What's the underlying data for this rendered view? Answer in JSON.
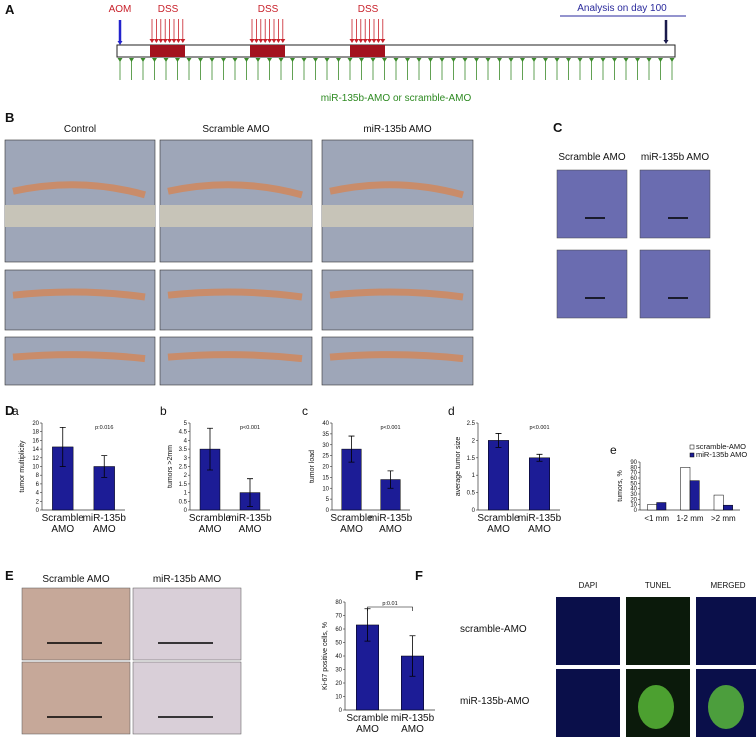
{
  "panel_labels": [
    "A",
    "B",
    "C",
    "D",
    "E",
    "F"
  ],
  "timeline": {
    "start": "AOM",
    "cycles": [
      "DSS",
      "DSS",
      "DSS"
    ],
    "end": "Analysis on day 100",
    "treatment": "miR-135b-AMO or scramble-AMO"
  },
  "photos": {
    "columns": [
      "Control",
      "Scramble AMO",
      "miR-135b AMO"
    ]
  },
  "histology": {
    "columns": [
      "Scramble AMO",
      "miR-135b AMO"
    ]
  },
  "ihc": {
    "columns": [
      "Scramble AMO",
      "miR-135b AMO"
    ]
  },
  "fluorescence": {
    "columns": [
      "DAPI",
      "TUNEL",
      "MERGED"
    ],
    "rows": [
      "scramble-AMO",
      "miR-135b-AMO"
    ]
  },
  "chart_data": [
    {
      "type": "bar",
      "label": "a",
      "ylabel": "tumor multiplicity",
      "categories": [
        "Scramble AMO",
        "miR-135b AMO"
      ],
      "values": [
        14.5,
        10
      ],
      "errors": [
        4.5,
        2.5
      ],
      "color": "#1c1c96",
      "ylim": [
        0,
        20
      ],
      "yticks": [
        0,
        2,
        4,
        6,
        8,
        10,
        12,
        14,
        16,
        18,
        20
      ],
      "annotation": "p:0.016"
    },
    {
      "type": "bar",
      "label": "b",
      "ylabel": "tumors >2mm",
      "categories": [
        "Scramble AMO",
        "miR-135b AMO"
      ],
      "values": [
        3.5,
        1
      ],
      "errors": [
        1.2,
        0.8
      ],
      "color": "#1c1c96",
      "ylim": [
        0,
        5
      ],
      "yticks": [
        0,
        0.5,
        1,
        1.5,
        2,
        2.5,
        3,
        3.5,
        4,
        4.5,
        5
      ],
      "annotation": "p<0.001"
    },
    {
      "type": "bar",
      "label": "c",
      "ylabel": "tumor load",
      "categories": [
        "Scramble AMO",
        "miR-135b AMO"
      ],
      "values": [
        28,
        14
      ],
      "errors": [
        6,
        4
      ],
      "color": "#1c1c96",
      "ylim": [
        0,
        40
      ],
      "yticks": [
        0,
        5,
        10,
        15,
        20,
        25,
        30,
        35,
        40
      ],
      "annotation": "p<0.001"
    },
    {
      "type": "bar",
      "label": "d",
      "ylabel": "average tumor size",
      "categories": [
        "Scramble AMO",
        "miR-135b AMO"
      ],
      "values": [
        2,
        1.5
      ],
      "errors": [
        0.2,
        0.1
      ],
      "color": "#1c1c96",
      "ylim": [
        0,
        2.5
      ],
      "yticks": [
        0,
        0.5,
        1,
        1.5,
        2,
        2.5
      ],
      "annotation": "p<0.001"
    },
    {
      "type": "grouped_bar",
      "label": "e",
      "ylabel": "tumors, %",
      "categories": [
        "<1 mm",
        "1-2 mm",
        ">2 mm"
      ],
      "series": [
        {
          "name": "scramble-AMO",
          "color": "#ffffff",
          "values": [
            10,
            80,
            28
          ]
        },
        {
          "name": "miR-135b AMO",
          "color": "#1c1c96",
          "values": [
            14,
            55,
            9
          ]
        }
      ],
      "ylim": [
        0,
        90
      ],
      "yticks": [
        0,
        10,
        20,
        30,
        40,
        50,
        60,
        70,
        80,
        90
      ],
      "legend": "upper right"
    },
    {
      "type": "bar",
      "ylabel": "Ki-67 positive cells, %",
      "categories": [
        "Scramble AMO",
        "miR-135b AMO"
      ],
      "values": [
        63,
        40
      ],
      "errors": [
        12,
        15
      ],
      "color": "#1c1c96",
      "ylim": [
        0,
        80
      ],
      "yticks": [
        0,
        10,
        20,
        30,
        40,
        50,
        60,
        70,
        80
      ],
      "annotation": "p:0.01",
      "bracket": true
    }
  ]
}
